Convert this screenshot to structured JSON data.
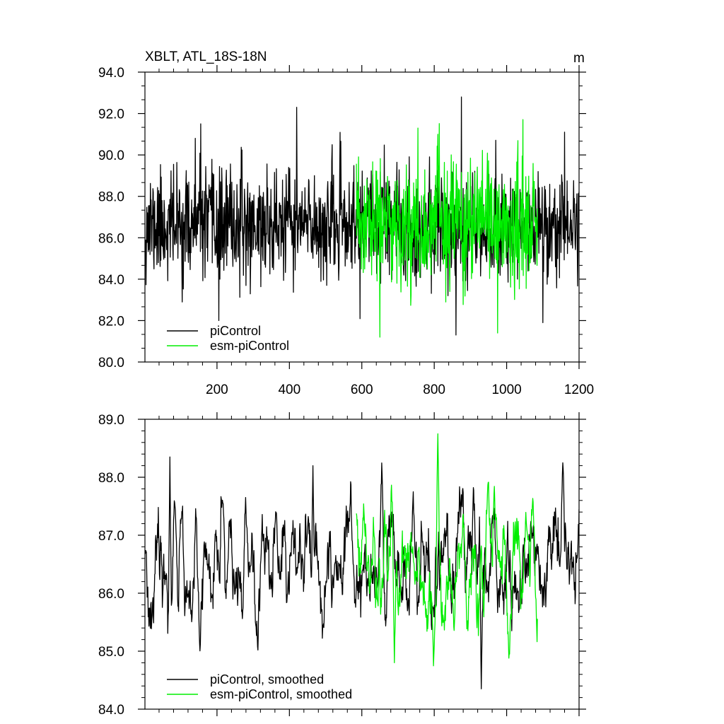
{
  "figure": {
    "title": "XBLT, ATL_18S-18N",
    "unit": "m"
  },
  "chart_data": [
    {
      "type": "line",
      "title": "XBLT, ATL_18S-18N",
      "unit_label": "m",
      "xlim": [
        1,
        1200
      ],
      "ylim": [
        80,
        94
      ],
      "x_ticks": [
        200,
        400,
        600,
        800,
        1000,
        1200
      ],
      "y_ticks": [
        80.0,
        82.0,
        84.0,
        86.0,
        88.0,
        90.0,
        92.0,
        94.0
      ],
      "grid": false,
      "legend_position": "bottom-left",
      "series": [
        {
          "name": "piControl",
          "color": "#000000",
          "x_range": [
            1,
            1200
          ],
          "mean": 86.6,
          "std": 1.3,
          "peaks": [
            [
              140,
              90.8
            ],
            [
              155,
              91.5
            ],
            [
              205,
              82.0
            ],
            [
              420,
              92.3
            ],
            [
              860,
              81.3
            ],
            [
              875,
              92.8
            ],
            [
              1100,
              81.9
            ],
            [
              1160,
              91.1
            ]
          ]
        },
        {
          "name": "esm-piControl",
          "color": "#00ee00",
          "x_range": [
            585,
            1085
          ],
          "mean": 86.6,
          "std": 1.5,
          "peaks": [
            [
              650,
              81.2
            ],
            [
              755,
              91.3
            ],
            [
              810,
              91.0
            ],
            [
              975,
              81.4
            ]
          ]
        }
      ]
    },
    {
      "type": "line",
      "xlim": [
        1,
        1200
      ],
      "ylim": [
        84,
        89
      ],
      "y_ticks": [
        84.0,
        85.0,
        86.0,
        87.0,
        88.0,
        89.0
      ],
      "grid": false,
      "legend_position": "bottom-left",
      "series": [
        {
          "name": "piControl, smoothed",
          "color": "#000000",
          "x_range": [
            1,
            1200
          ],
          "mean": 86.5,
          "std": 0.55,
          "peaks": [
            [
              70,
              88.35
            ],
            [
              465,
              88.2
            ],
            [
              930,
              84.35
            ],
            [
              1155,
              88.25
            ]
          ]
        },
        {
          "name": "esm-piControl, smoothed",
          "color": "#00ee00",
          "x_range": [
            585,
            1085
          ],
          "mean": 86.45,
          "std": 0.6,
          "peaks": [
            [
              690,
              84.8
            ],
            [
              810,
              88.75
            ]
          ]
        }
      ]
    }
  ]
}
